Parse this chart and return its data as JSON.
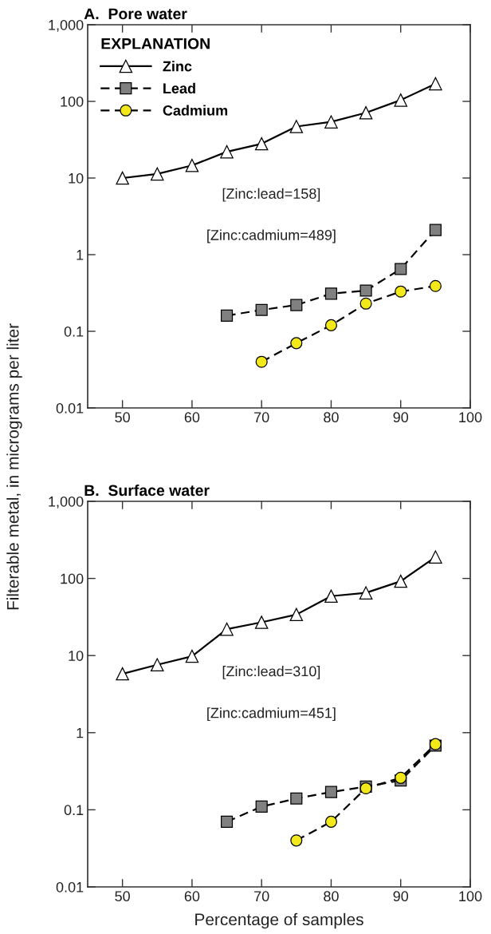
{
  "chart_data": [
    {
      "type": "line",
      "title": "A.  Pore water",
      "ylabel": "Filterable metal, in micrograms per liter",
      "legend_title": "EXPLANATION",
      "legend": "top left",
      "log": "y",
      "grid": false,
      "xlim": [
        45,
        100
      ],
      "xticks": [
        50,
        60,
        70,
        80,
        90,
        100
      ],
      "ylim": [
        0.01,
        1000
      ],
      "yticks": [
        {
          "value": 0.01,
          "label": "0.01"
        },
        {
          "value": 0.1,
          "label": "0.1"
        },
        1,
        10,
        100,
        {
          "value": 1000,
          "label": "1,000"
        }
      ],
      "annotations": [
        "[Zinc:lead=158]",
        "[Zinc:cadmium=489]"
      ],
      "series": [
        {
          "name": "Zinc",
          "color": "#ffffff",
          "marker": "triangle",
          "line_style": "solid",
          "x": [
            50,
            55,
            60,
            65,
            70,
            75,
            80,
            85,
            90,
            95
          ],
          "values": [
            10,
            11.3,
            14.6,
            22,
            28,
            47,
            54,
            71,
            104,
            170
          ]
        },
        {
          "name": "Lead",
          "color": "#808080",
          "marker": "square",
          "line_style": "dashed",
          "x": [
            65,
            70,
            75,
            80,
            85,
            90,
            95
          ],
          "values": [
            0.16,
            0.19,
            0.22,
            0.31,
            0.34,
            0.65,
            2.1
          ]
        },
        {
          "name": "Cadmium",
          "color": "#f2e81a",
          "marker": "circle",
          "line_style": "dashed",
          "x": [
            70,
            75,
            80,
            85,
            90,
            95
          ],
          "values": [
            0.04,
            0.07,
            0.12,
            0.23,
            0.33,
            0.39
          ]
        }
      ]
    },
    {
      "type": "line",
      "title": "B.  Surface water",
      "xlabel": "Percentage of samples",
      "log": "y",
      "grid": false,
      "xlim": [
        45,
        100
      ],
      "xticks": [
        50,
        60,
        70,
        80,
        90,
        100
      ],
      "ylim": [
        0.01,
        1000
      ],
      "yticks": [
        {
          "value": 0.01,
          "label": "0.01"
        },
        {
          "value": 0.1,
          "label": "0.1"
        },
        1,
        10,
        100,
        {
          "value": 1000,
          "label": "1,000"
        }
      ],
      "annotations": [
        "[Zinc:lead=310]",
        "[Zinc:cadmium=451]"
      ],
      "series": [
        {
          "color": "#ffffff",
          "marker": "triangle",
          "line_style": "solid",
          "x": [
            50,
            55,
            60,
            65,
            70,
            75,
            80,
            85,
            90,
            95
          ],
          "values": [
            5.8,
            7.6,
            9.8,
            22,
            27,
            34,
            59,
            65,
            92,
            190
          ]
        },
        {
          "color": "#808080",
          "marker": "square",
          "line_style": "dashed",
          "x": [
            65,
            70,
            75,
            80,
            85,
            90,
            95
          ],
          "values": [
            0.07,
            0.11,
            0.14,
            0.17,
            0.2,
            0.24,
            0.68
          ]
        },
        {
          "color": "#f2e81a",
          "marker": "circle",
          "line_style": "dashed",
          "x": [
            75,
            80,
            85,
            90,
            95
          ],
          "values": [
            0.04,
            0.07,
            0.19,
            0.26,
            0.71
          ]
        }
      ]
    }
  ]
}
